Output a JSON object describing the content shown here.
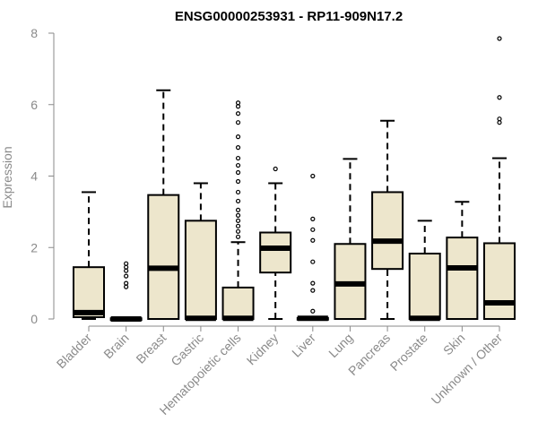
{
  "chart_data": {
    "type": "boxplot",
    "title": "ENSG00000253931 - RP11-909N17.2",
    "xlabel": "",
    "ylabel": "Expression",
    "ylim": [
      0,
      8
    ],
    "yticks": [
      "0",
      "2",
      "4",
      "6",
      "8"
    ],
    "box_color": "#ede6cc",
    "categories": [
      "Bladder",
      "Brain",
      "Breast",
      "Gastric",
      "Hematopoietic cells",
      "Kidney",
      "Liver",
      "Lung",
      "Pancreas",
      "Prostate",
      "Skin",
      "Unknown / Other"
    ],
    "series": [
      {
        "name": "Bladder",
        "min": 0,
        "q1": 0.05,
        "median": 0.18,
        "q3": 1.45,
        "max": 3.55,
        "outliers": []
      },
      {
        "name": "Brain",
        "min": 0,
        "q1": 0,
        "median": 0,
        "q3": 0.02,
        "max": 0.02,
        "outliers": [
          0.9,
          1.0,
          1.2,
          1.35,
          1.45,
          1.55
        ]
      },
      {
        "name": "Breast",
        "min": 0,
        "q1": 0,
        "median": 1.42,
        "q3": 3.47,
        "max": 6.4,
        "outliers": []
      },
      {
        "name": "Gastric",
        "min": 0,
        "q1": 0,
        "median": 0.02,
        "q3": 2.75,
        "max": 3.8,
        "outliers": []
      },
      {
        "name": "Hematopoietic cells",
        "min": 0,
        "q1": 0,
        "median": 0.02,
        "q3": 0.88,
        "max": 2.15,
        "outliers": [
          2.3,
          2.45,
          2.6,
          2.75,
          2.9,
          3.05,
          3.3,
          3.55,
          3.85,
          4.1,
          4.3,
          4.5,
          4.8,
          5.1,
          5.5,
          5.75,
          5.95,
          6.05
        ]
      },
      {
        "name": "Kidney",
        "min": 0,
        "q1": 1.3,
        "median": 1.98,
        "q3": 2.42,
        "max": 3.8,
        "outliers": [
          4.2
        ]
      },
      {
        "name": "Liver",
        "min": 0,
        "q1": 0,
        "median": 0.02,
        "q3": 0.03,
        "max": 0.05,
        "outliers": [
          0.22,
          0.8,
          1.0,
          1.6,
          2.2,
          2.5,
          2.8,
          4.0
        ]
      },
      {
        "name": "Lung",
        "min": 0,
        "q1": 0,
        "median": 0.98,
        "q3": 2.1,
        "max": 4.48,
        "outliers": []
      },
      {
        "name": "Pancreas",
        "min": 0,
        "q1": 1.4,
        "median": 2.18,
        "q3": 3.55,
        "max": 5.55,
        "outliers": []
      },
      {
        "name": "Prostate",
        "min": 0,
        "q1": 0,
        "median": 0.02,
        "q3": 1.83,
        "max": 2.75,
        "outliers": []
      },
      {
        "name": "Skin",
        "min": 0,
        "q1": 0,
        "median": 1.43,
        "q3": 2.28,
        "max": 3.28,
        "outliers": []
      },
      {
        "name": "Unknown / Other",
        "min": 0,
        "q1": 0,
        "median": 0.45,
        "q3": 2.12,
        "max": 4.5,
        "outliers": [
          5.5,
          5.6,
          6.2,
          7.85
        ]
      }
    ]
  }
}
